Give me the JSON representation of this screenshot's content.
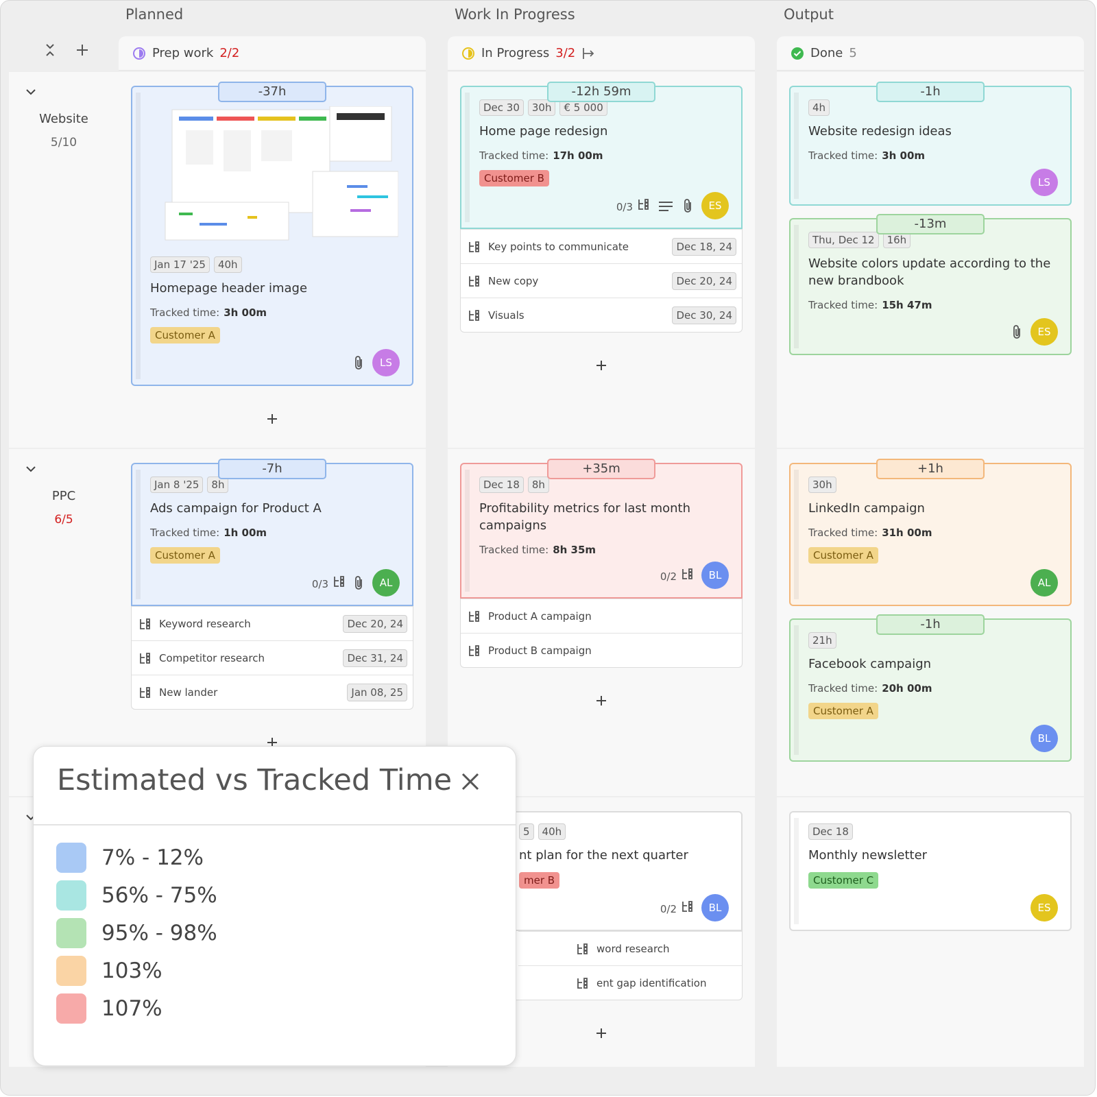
{
  "columns": [
    {
      "group": "Planned",
      "name": "Prep work",
      "count": "2/2",
      "count_alert": true,
      "icon_color": "#9c7bf0"
    },
    {
      "group": "Work In Progress",
      "name": "In Progress",
      "count": "3/2",
      "count_alert": true,
      "icon_color": "#e6c21a"
    },
    {
      "group": "Output",
      "name": "Done",
      "count": "5",
      "count_alert": false,
      "icon_color": "#3fb950"
    }
  ],
  "tracked_label": "Tracked time:",
  "lanes": [
    {
      "name": "Website",
      "count": "5/10",
      "count_alert": false,
      "cells": [
        [
          {
            "delta": "-37h",
            "color": "blue",
            "image": true,
            "tags": [
              "Jan 17 '25",
              "40h"
            ],
            "title": "Homepage header image",
            "tracked": "3h 00m",
            "customer": "Customer A",
            "customer_color": "yellow",
            "attachment": true,
            "avatar": "LS",
            "avatar_color": "#c77ce6"
          }
        ],
        [
          {
            "delta": "-12h 59m",
            "color": "teal",
            "tags": [
              "Dec 30",
              "30h",
              "€ 5 000"
            ],
            "title": "Home page redesign",
            "tracked": "17h 00m",
            "customer": "Customer B",
            "customer_color": "red",
            "subtasks_count": "0/3",
            "description": true,
            "attachment": true,
            "avatar": "ES",
            "avatar_color": "#e3c51e",
            "subtasks": [
              {
                "name": "Key points to communicate",
                "date": "Dec 18, 24"
              },
              {
                "name": "New copy",
                "date": "Dec 20, 24"
              },
              {
                "name": "Visuals",
                "date": "Dec 30, 24"
              }
            ]
          }
        ],
        [
          {
            "delta": "-1h",
            "color": "teal",
            "tags": [
              "4h"
            ],
            "title": "Website redesign ideas",
            "tracked": "3h 00m",
            "avatar": "LS",
            "avatar_color": "#c77ce6"
          },
          {
            "delta": "-13m",
            "color": "green",
            "tags": [
              "Thu, Dec 12",
              "16h"
            ],
            "title": "Website colors update according to the new brandbook",
            "tracked": "15h 47m",
            "attachment": true,
            "avatar": "ES",
            "avatar_color": "#e3c51e"
          }
        ]
      ]
    },
    {
      "name": "PPC",
      "count": "6/5",
      "count_alert": true,
      "cells": [
        [
          {
            "delta": "-7h",
            "color": "blue",
            "tags": [
              "Jan 8 '25",
              "8h"
            ],
            "title": "Ads campaign for Product A",
            "tracked": "1h 00m",
            "customer": "Customer A",
            "customer_color": "yellow",
            "subtasks_count": "0/3",
            "attachment": true,
            "avatar": "AL",
            "avatar_color": "#4caf50",
            "subtasks": [
              {
                "name": "Keyword research",
                "date": "Dec 20, 24"
              },
              {
                "name": "Competitor research",
                "date": "Dec 31, 24"
              },
              {
                "name": "New lander",
                "date": "Jan 08, 25"
              }
            ]
          }
        ],
        [
          {
            "delta": "+35m",
            "color": "red",
            "tags": [
              "Dec 18",
              "8h"
            ],
            "title": "Profitability metrics for last month campaigns",
            "tracked": "8h 35m",
            "subtasks_count": "0/2",
            "avatar": "BL",
            "avatar_color": "#6b8ff0",
            "subtasks": [
              {
                "name": "Product A campaign"
              },
              {
                "name": "Product B campaign"
              }
            ]
          }
        ],
        [
          {
            "delta": "+1h",
            "color": "orange",
            "tags": [
              "30h"
            ],
            "title": "LinkedIn campaign",
            "tracked": "31h 00m",
            "customer": "Customer A",
            "customer_color": "yellow",
            "avatar": "AL",
            "avatar_color": "#4caf50"
          },
          {
            "delta": "-1h",
            "color": "green",
            "tags": [
              "21h"
            ],
            "title": "Facebook campaign",
            "tracked": "20h 00m",
            "customer": "Customer A",
            "customer_color": "yellow",
            "avatar": "BL",
            "avatar_color": "#6b8ff0"
          }
        ]
      ]
    },
    {
      "cells": [
        [],
        [
          {
            "color": "white",
            "clipped": true,
            "tags": [
              "5",
              "40h"
            ],
            "title": "nt plan for the next quarter",
            "customer": "mer B",
            "customer_color": "red",
            "subtasks_count": "0/2",
            "avatar": "BL",
            "avatar_color": "#6b8ff0",
            "subtasks": [
              {
                "name": "word research"
              },
              {
                "name": "ent gap identification"
              }
            ]
          }
        ],
        [
          {
            "color": "white",
            "tags": [
              "Dec 18"
            ],
            "title": "Monthly newsletter",
            "customer": "Customer C",
            "customer_color": "green",
            "avatar": "ES",
            "avatar_color": "#e3c51e"
          }
        ]
      ]
    }
  ],
  "legend": {
    "title": "Estimated vs Tracked Time",
    "items": [
      {
        "label": "7% - 12%",
        "color": "#a9c9f5"
      },
      {
        "label": "56% - 75%",
        "color": "#a9e6e2"
      },
      {
        "label": "95% - 98%",
        "color": "#b4e3b4"
      },
      {
        "label": "103%",
        "color": "#fad4a5"
      },
      {
        "label": "107%",
        "color": "#f7aaa9"
      }
    ]
  }
}
